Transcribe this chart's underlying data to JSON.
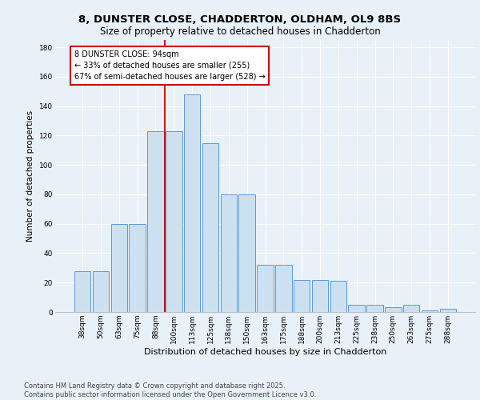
{
  "title_line1": "8, DUNSTER CLOSE, CHADDERTON, OLDHAM, OL9 8BS",
  "title_line2": "Size of property relative to detached houses in Chadderton",
  "xlabel": "Distribution of detached houses by size in Chadderton",
  "ylabel": "Number of detached properties",
  "categories": [
    "38sqm",
    "50sqm",
    "63sqm",
    "75sqm",
    "88sqm",
    "100sqm",
    "113sqm",
    "125sqm",
    "138sqm",
    "150sqm",
    "163sqm",
    "175sqm",
    "188sqm",
    "200sqm",
    "213sqm",
    "225sqm",
    "238sqm",
    "250sqm",
    "263sqm",
    "275sqm",
    "288sqm"
  ],
  "values": [
    28,
    28,
    60,
    60,
    123,
    123,
    148,
    115,
    80,
    80,
    32,
    32,
    22,
    22,
    21,
    5,
    5,
    3,
    5,
    1,
    2
  ],
  "bar_color": "#cce0f0",
  "bar_edge_color": "#5b9bd5",
  "vline_x": 4.5,
  "vline_color": "#cc0000",
  "annotation_text": "8 DUNSTER CLOSE: 94sqm\n← 33% of detached houses are smaller (255)\n67% of semi-detached houses are larger (528) →",
  "annotation_box_color": "#ffffff",
  "annotation_box_edge": "#cc0000",
  "bg_color": "#e8f0f8",
  "plot_bg_color": "#e8f0f8",
  "footer_line1": "Contains HM Land Registry data © Crown copyright and database right 2025.",
  "footer_line2": "Contains public sector information licensed under the Open Government Licence v3.0.",
  "ylim": [
    0,
    185
  ],
  "yticks": [
    0,
    20,
    40,
    60,
    80,
    100,
    120,
    140,
    160,
    180
  ],
  "title_fontsize": 9.5,
  "subtitle_fontsize": 8.5,
  "axis_label_fontsize": 7.5,
  "tick_fontsize": 6.5,
  "footer_fontsize": 6.0,
  "annotation_fontsize": 7.0
}
